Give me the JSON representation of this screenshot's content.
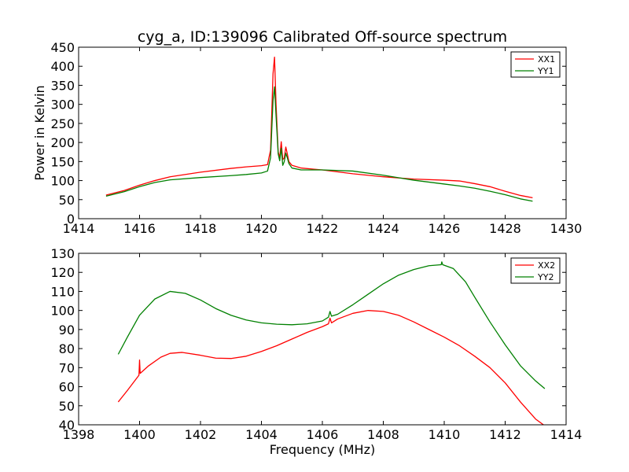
{
  "chart_data": [
    {
      "type": "line",
      "title": "cyg_a, ID:139096 Calibrated Off-source spectrum",
      "xlabel": "",
      "ylabel": "Power in Kelvin",
      "xlim": [
        1414,
        1430
      ],
      "ylim": [
        0,
        450
      ],
      "xticks": [
        1414,
        1416,
        1418,
        1420,
        1422,
        1424,
        1426,
        1428,
        1430
      ],
      "yticks": [
        0,
        50,
        100,
        150,
        200,
        250,
        300,
        350,
        400,
        450
      ],
      "legend": "top-right",
      "series": [
        {
          "name": "XX1",
          "color": "#ff0000",
          "x": [
            1414.9,
            1415.5,
            1416,
            1416.5,
            1417,
            1418,
            1419,
            1419.5,
            1420,
            1420.2,
            1420.3,
            1420.38,
            1420.43,
            1420.48,
            1420.55,
            1420.6,
            1420.65,
            1420.7,
            1420.75,
            1420.8,
            1420.85,
            1420.9,
            1421,
            1421.3,
            1421.7,
            1422,
            1423,
            1424,
            1425,
            1426,
            1426.5,
            1427,
            1427.5,
            1428,
            1428.5,
            1428.9
          ],
          "y": [
            62,
            74,
            88,
            100,
            110,
            122,
            132,
            136,
            139,
            142,
            180,
            380,
            424,
            300,
            175,
            160,
            202,
            155,
            160,
            188,
            170,
            150,
            140,
            133,
            130,
            128,
            118,
            110,
            104,
            101,
            99,
            92,
            84,
            72,
            61,
            55
          ]
        },
        {
          "name": "YY1",
          "color": "#008000",
          "x": [
            1414.9,
            1415.5,
            1416,
            1416.5,
            1417,
            1418,
            1419,
            1419.5,
            1420,
            1420.2,
            1420.3,
            1420.38,
            1420.43,
            1420.48,
            1420.55,
            1420.6,
            1420.65,
            1420.7,
            1420.75,
            1420.8,
            1420.85,
            1420.9,
            1421,
            1421.3,
            1421.7,
            1422,
            1423,
            1424,
            1425,
            1426,
            1426.5,
            1427,
            1427.5,
            1428,
            1428.5,
            1428.9
          ],
          "y": [
            59,
            71,
            84,
            95,
            102,
            108,
            113,
            116,
            120,
            125,
            160,
            310,
            346,
            270,
            170,
            152,
            185,
            140,
            150,
            172,
            160,
            145,
            133,
            128,
            128,
            128,
            125,
            114,
            101,
            91,
            86,
            80,
            72,
            63,
            52,
            46
          ]
        }
      ]
    },
    {
      "type": "line",
      "title": "",
      "xlabel": "Frequency (MHz)",
      "ylabel": "",
      "xlim": [
        1398,
        1414
      ],
      "ylim": [
        40,
        130
      ],
      "xticks": [
        1398,
        1400,
        1402,
        1404,
        1406,
        1408,
        1410,
        1412,
        1414
      ],
      "yticks": [
        40,
        50,
        60,
        70,
        80,
        90,
        100,
        110,
        120,
        130
      ],
      "legend": "top-right",
      "series": [
        {
          "name": "XX2",
          "color": "#ff0000",
          "x": [
            1399.3,
            1399.6,
            1399.98,
            1400.0,
            1400.02,
            1400.3,
            1400.7,
            1401,
            1401.4,
            1402,
            1402.5,
            1403,
            1403.5,
            1404,
            1404.5,
            1405,
            1405.5,
            1406,
            1406.2,
            1406.25,
            1406.3,
            1406.5,
            1407,
            1407.5,
            1408,
            1408.5,
            1409,
            1409.5,
            1410,
            1410.5,
            1411,
            1411.5,
            1412,
            1412.5,
            1413,
            1413.3
          ],
          "y": [
            52,
            58,
            66,
            74,
            67,
            71,
            75.5,
            77.5,
            78,
            76.5,
            75,
            74.8,
            76,
            78.5,
            81.5,
            85,
            88.5,
            91.5,
            93,
            96,
            93.5,
            95.5,
            98.5,
            100,
            99.5,
            97.5,
            94,
            90,
            86,
            81.5,
            76,
            70,
            62,
            52,
            43,
            39.5
          ]
        },
        {
          "name": "YY2",
          "color": "#008000",
          "x": [
            1399.3,
            1399.6,
            1400,
            1400.5,
            1401,
            1401.5,
            1402,
            1402.5,
            1403,
            1403.5,
            1404,
            1404.5,
            1405,
            1405.5,
            1406,
            1406.2,
            1406.25,
            1406.3,
            1406.5,
            1407,
            1407.5,
            1408,
            1408.5,
            1409,
            1409.5,
            1409.9,
            1409.92,
            1409.95,
            1410.3,
            1410.7,
            1411,
            1411.5,
            1412,
            1412.5,
            1413,
            1413.3
          ],
          "y": [
            77,
            86,
            97.5,
            106,
            110,
            109,
            105.5,
            101,
            97.5,
            95,
            93.5,
            92.8,
            92.5,
            93,
            94.5,
            96.5,
            99.5,
            97,
            98,
            103,
            108.5,
            114,
            118.5,
            121.5,
            123.5,
            124,
            125.5,
            124,
            122,
            115,
            107,
            94,
            82,
            71,
            63,
            59
          ]
        }
      ]
    }
  ]
}
